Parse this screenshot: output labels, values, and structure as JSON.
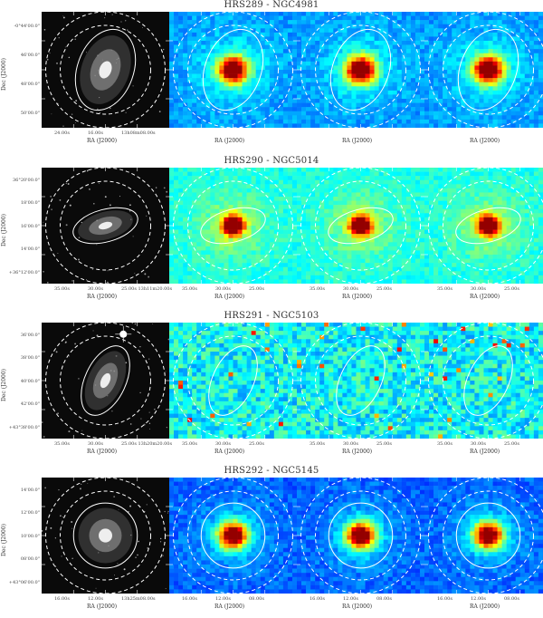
{
  "rows": [
    {
      "title": "HRS289 - NGC4981",
      "ylabel": "Dec (J2000)",
      "yticks": [
        "-0°44'00.0\"",
        "46'00.0\"",
        "48'00.0\"",
        "50'00.0\""
      ],
      "panels": [
        {
          "xticks": [
            "24.00s",
            "16.00s",
            "13h08m08.00s"
          ],
          "xlabel": "RA (J2000)"
        },
        {
          "xticks": "",
          "xlabel": "RA (J2000)"
        },
        {
          "xticks": "",
          "xlabel": "RA (J2000)"
        },
        {
          "xticks": "",
          "xlabel": "RA (J2000)"
        }
      ],
      "inner_ellipse": {
        "rx_frac": 0.22,
        "ry_frac": 0.36,
        "angle": 20
      },
      "background": "mid-blue"
    },
    {
      "title": "HRS290 - NGC5014",
      "ylabel": "Dec (J2000)",
      "yticks": [
        "36°20'00.0\"",
        "18'00.0\"",
        "16'00.0\"",
        "14'00.0\"",
        "+36°12'00.0\""
      ],
      "panels": [
        {
          "xticks": [
            "35.00s",
            "30.00s",
            "25.00s 13h11m20.00s"
          ],
          "xlabel": "RA (J2000)"
        },
        {
          "xticks": [
            "35.00s",
            "30.00s",
            "25.00s"
          ],
          "xlabel": "RA (J2000)"
        },
        {
          "xticks": [
            "35.00s",
            "30.00s",
            "25.00s"
          ],
          "xlabel": "RA (J2000)"
        },
        {
          "xticks": [
            "35.00s",
            "30.00s",
            "25.00s"
          ],
          "xlabel": "RA (J2000)"
        }
      ],
      "inner_ellipse": {
        "rx_frac": 0.26,
        "ry_frac": 0.14,
        "angle": -15
      },
      "background": "cyan"
    },
    {
      "title": "HRS291 - NGC5103",
      "ylabel": "Dec (J2000)",
      "yticks": [
        "36'00.0\"",
        "38'00.0\"",
        "40'00.0\"",
        "42'00.0\"",
        "+43°38'00.0\""
      ],
      "panels": [
        {
          "xticks": [
            "35.00s",
            "30.00s",
            "25.00s 13h20m20.00s"
          ],
          "xlabel": "RA (J2000)"
        },
        {
          "xticks": [
            "35.00s",
            "30.00s",
            "25.00s"
          ],
          "xlabel": "RA (J2000)"
        },
        {
          "xticks": [
            "35.00s",
            "30.00s",
            "25.00s"
          ],
          "xlabel": "RA (J2000)"
        },
        {
          "xticks": [
            "35.00s",
            "30.00s",
            "25.00s"
          ],
          "xlabel": "RA (J2000)"
        }
      ],
      "inner_ellipse": {
        "rx_frac": 0.16,
        "ry_frac": 0.32,
        "angle": 25
      },
      "background": "noisy"
    },
    {
      "title": "HRS292 - NGC5145",
      "ylabel": "Dec (J2000)",
      "yticks": [
        "14'00.0\"",
        "12'00.0\"",
        "10'00.0\"",
        "08'00.0\"",
        "+43°06'00.0\""
      ],
      "panels": [
        {
          "xticks": [
            "16.00s",
            "12.00s",
            "13h25m08.00s"
          ],
          "xlabel": "RA (J2000)"
        },
        {
          "xticks": [
            "16.00s",
            "12.00s",
            "08.00s"
          ],
          "xlabel": "RA (J2000)"
        },
        {
          "xticks": [
            "16.00s",
            "12.00s",
            "08.00s"
          ],
          "xlabel": "RA (J2000)"
        },
        {
          "xticks": [
            "16.00s",
            "12.00s",
            "08.00s"
          ],
          "xlabel": "RA (J2000)"
        }
      ],
      "inner_ellipse": {
        "rx_frac": 0.25,
        "ry_frac": 0.28,
        "angle": 0
      },
      "background": "deep-blue"
    }
  ]
}
